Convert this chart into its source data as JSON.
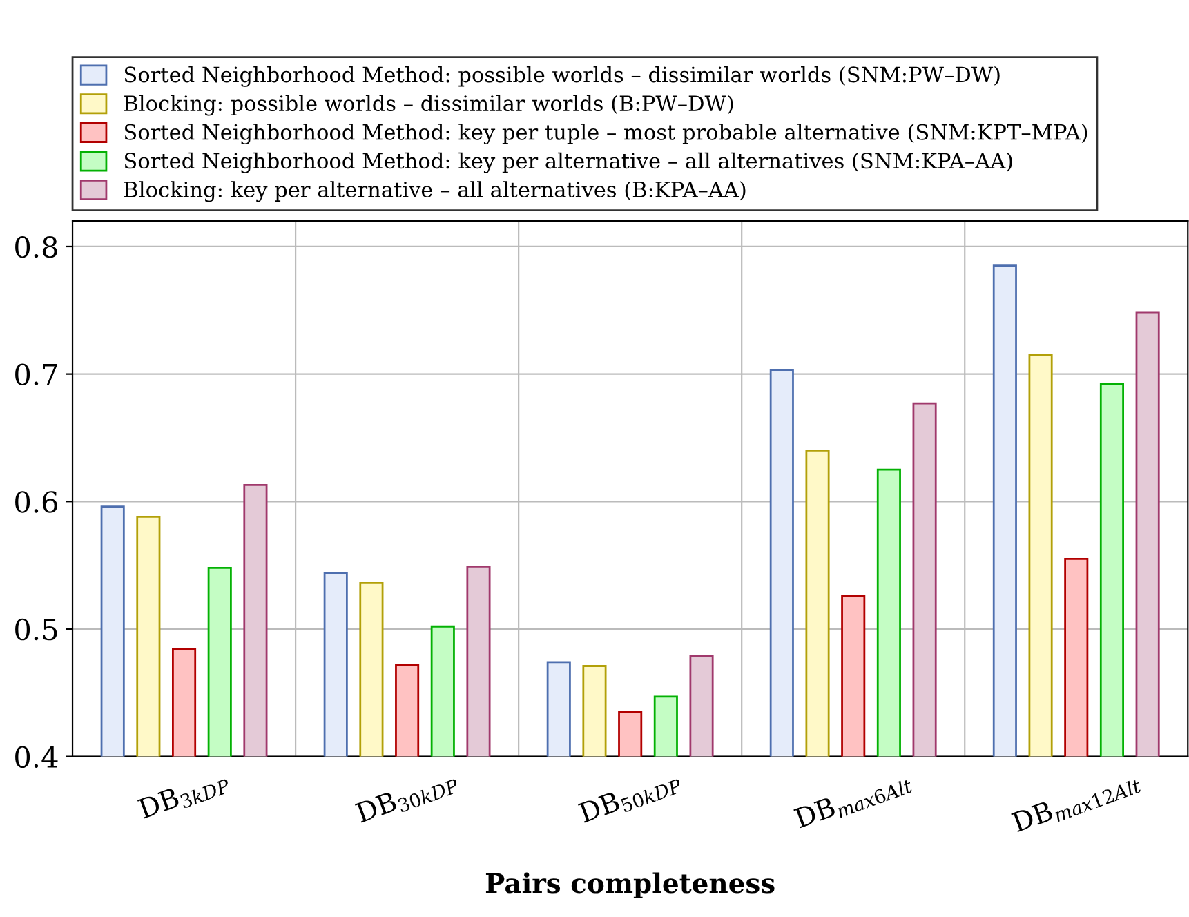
{
  "chart_data": {
    "type": "bar",
    "xlabel": "Pairs completeness",
    "categories": [
      "DB$_{3kDP}$",
      "DB$_{30kDP}$",
      "DB$_{50kDP}$",
      "DB$_{max6Alt}$",
      "DB$_{max12Alt}$"
    ],
    "series": [
      {
        "name": "Sorted Neighborhood Method: possible worlds – dissimilar worlds (SNM:PW–DW)",
        "color": "#e5ecfa",
        "values": [
          0.596,
          0.544,
          0.474,
          0.703,
          0.785
        ]
      },
      {
        "name": "Blocking: possible worlds – dissimilar worlds (B:PW–DW)",
        "color": "#fff9c8",
        "values": [
          0.588,
          0.536,
          0.471,
          0.64,
          0.715
        ]
      },
      {
        "name": "Sorted Neighborhood Method: key per tuple – most probable alternative (SNM:KPT–MPA)",
        "color": "#ffc2c2",
        "values": [
          0.484,
          0.472,
          0.435,
          0.526,
          0.555
        ]
      },
      {
        "name": "Sorted Neighborhood Method: key per alternative – all alternatives (SNM:KPA–AA)",
        "color": "#c4fdc4",
        "values": [
          0.548,
          0.502,
          0.447,
          0.625,
          0.692
        ]
      },
      {
        "name": "Blocking: key per alternative – all alternatives (B:KPA–AA)",
        "color": "#e4cad7",
        "values": [
          0.613,
          0.549,
          0.479,
          0.677,
          0.748
        ]
      }
    ],
    "ylim": [
      0.4,
      0.82
    ],
    "yticks": [
      {
        "value": 0.4,
        "label": "0.4"
      },
      {
        "value": 0.5,
        "label": "0.5"
      },
      {
        "value": 0.6,
        "label": "0.6"
      },
      {
        "value": 0.7,
        "label": "0.7"
      },
      {
        "value": 0.8,
        "label": "0.8"
      }
    ],
    "grid": true,
    "legend": "top"
  }
}
